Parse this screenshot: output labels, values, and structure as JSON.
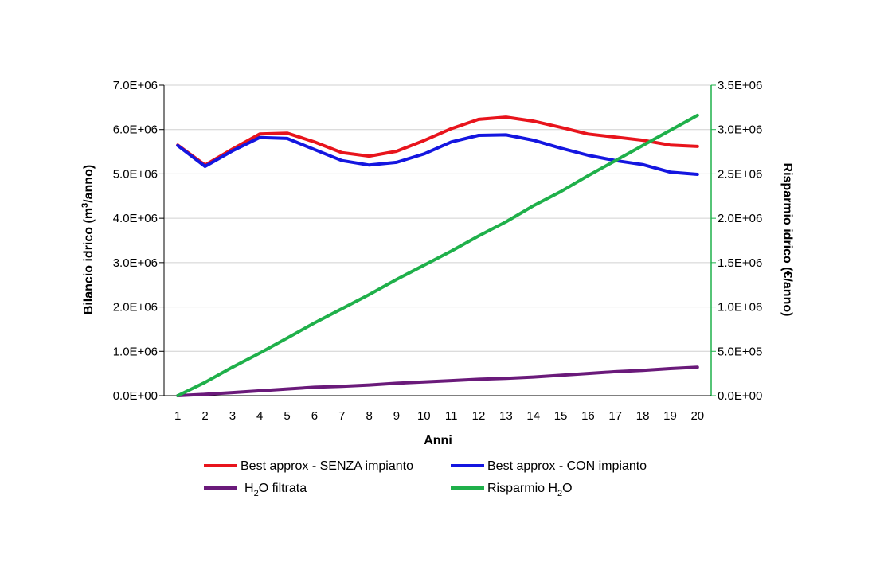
{
  "chart_data": {
    "type": "line",
    "xlabel": "Anni",
    "ylabel_left": {
      "pre": "Bilancio idrico (m",
      "sup": "3",
      "post": "/anno)"
    },
    "ylabel_right": "Risparmio idrico (€/anno)",
    "x": [
      1,
      2,
      3,
      4,
      5,
      6,
      7,
      8,
      9,
      10,
      11,
      12,
      13,
      14,
      15,
      16,
      17,
      18,
      19,
      20
    ],
    "ylim_left": [
      0,
      7000000
    ],
    "ylim_right": [
      0,
      3500000
    ],
    "yticks_left": [
      "0.0E+00",
      "1.0E+06",
      "2.0E+06",
      "3.0E+06",
      "4.0E+06",
      "5.0E+06",
      "6.0E+06",
      "7.0E+06"
    ],
    "yticks_right": [
      "0.0E+00",
      "5.0E+05",
      "1.0E+06",
      "1.5E+06",
      "2.0E+06",
      "2.5E+06",
      "3.0E+06",
      "3.5E+06"
    ],
    "grid": true,
    "legend_position": "bottom",
    "series": [
      {
        "name": "Best approx - SENZA impianto",
        "axis": "left",
        "color": "#e8141c",
        "values": [
          5650000,
          5200000,
          5560000,
          5900000,
          5920000,
          5720000,
          5480000,
          5400000,
          5510000,
          5750000,
          6020000,
          6230000,
          6280000,
          6190000,
          6050000,
          5900000,
          5830000,
          5760000,
          5650000,
          5620000
        ]
      },
      {
        "name": "Best approx - CON impianto",
        "axis": "left",
        "color": "#1416e0",
        "values": [
          5640000,
          5170000,
          5520000,
          5820000,
          5800000,
          5550000,
          5300000,
          5200000,
          5260000,
          5450000,
          5720000,
          5870000,
          5880000,
          5760000,
          5580000,
          5420000,
          5300000,
          5210000,
          5040000,
          4990000
        ]
      },
      {
        "name": {
          "pre": "H",
          "sub": "2",
          "post": "O filtrata"
        },
        "axis": "left",
        "color": "#6a1a7a",
        "values": [
          0,
          30000,
          70000,
          110000,
          150000,
          190000,
          210000,
          240000,
          280000,
          310000,
          340000,
          370000,
          390000,
          420000,
          460000,
          500000,
          540000,
          570000,
          610000,
          640000
        ]
      },
      {
        "name": {
          "pre": "Risparmio H",
          "sub": "2",
          "post": "O"
        },
        "axis": "right",
        "color": "#1fb04a",
        "values": [
          0,
          150000,
          320000,
          480000,
          650000,
          820000,
          980000,
          1140000,
          1310000,
          1470000,
          1630000,
          1800000,
          1960000,
          2140000,
          2300000,
          2480000,
          2650000,
          2820000,
          2990000,
          3160000
        ]
      }
    ]
  }
}
